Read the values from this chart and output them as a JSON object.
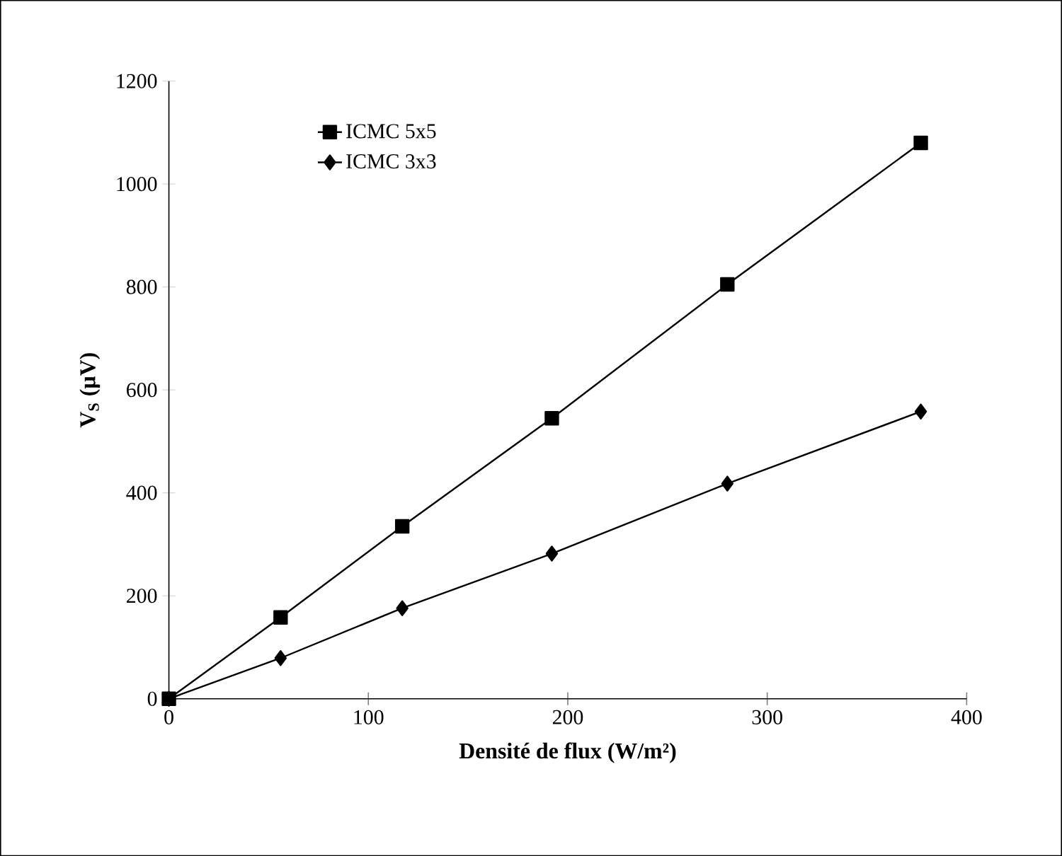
{
  "chart_data": {
    "type": "line",
    "xlabel": "Densité de flux (W/m²)",
    "ylabel": "V$_{S}$ (µV)",
    "x": [
      0,
      56,
      117,
      192,
      280,
      377
    ],
    "series": [
      {
        "name": "ICMC 5x5",
        "color": "#000000",
        "marker": "square",
        "values": [
          0,
          158,
          335,
          545,
          805,
          1080
        ]
      },
      {
        "name": "ICMC 3x3",
        "color": "#000000",
        "marker": "diamond",
        "values": [
          0,
          79,
          176,
          282,
          418,
          558
        ]
      }
    ],
    "xlim": [
      0,
      400
    ],
    "xticks": [
      0,
      100,
      200,
      300,
      400
    ],
    "ylim": [
      0,
      1200
    ],
    "yticks": [
      0,
      200,
      400,
      600,
      800,
      1000,
      1200
    ],
    "grid": false,
    "legend": "top left",
    "line_style": "solid"
  }
}
